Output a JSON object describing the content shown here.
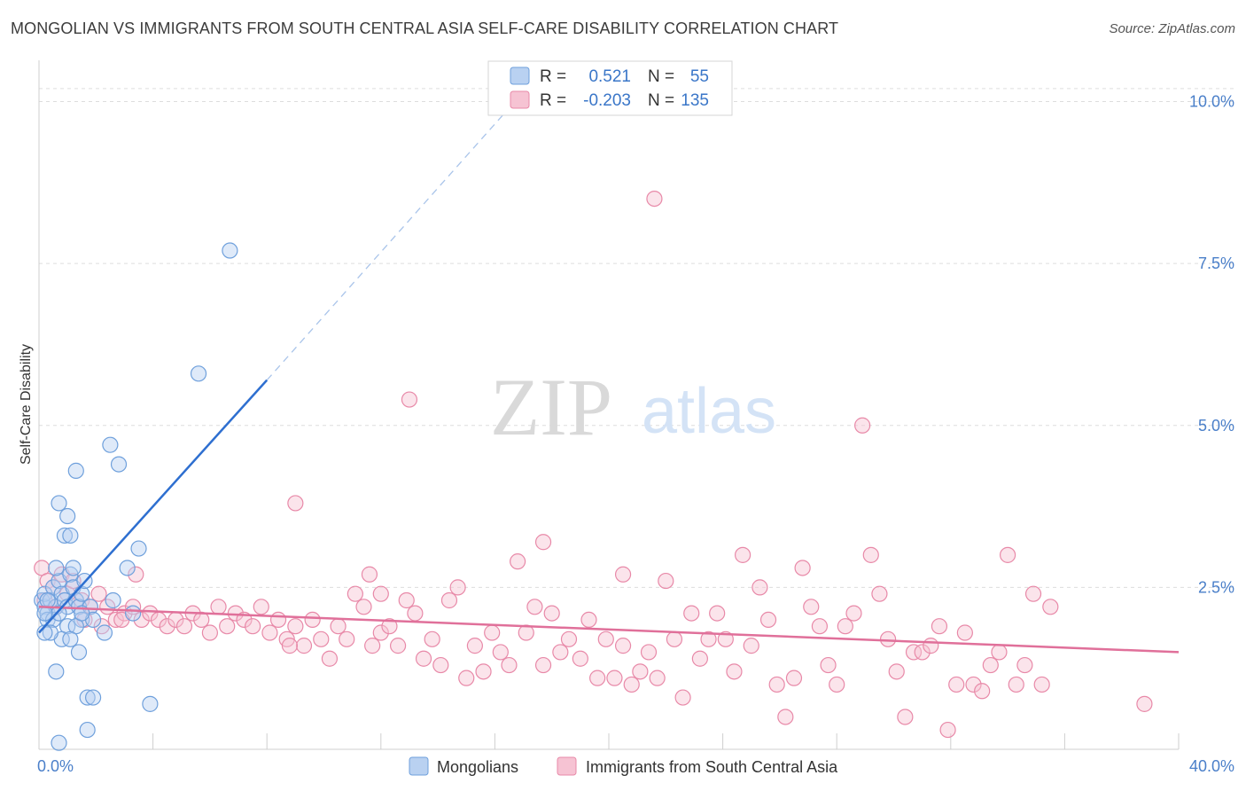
{
  "title": "MONGOLIAN VS IMMIGRANTS FROM SOUTH CENTRAL ASIA SELF-CARE DISABILITY CORRELATION CHART",
  "source": "Source: ZipAtlas.com",
  "watermark": {
    "zip": "ZIP",
    "atlas": "atlas"
  },
  "colors": {
    "blue": "#6fa0dc",
    "blue_fill": "#b9d1f1",
    "blue_line": "#2e6fd0",
    "pink": "#e889a8",
    "pink_fill": "#f6c3d3",
    "pink_line": "#e0709a",
    "grid": "#dddddd",
    "axis_text": "#4a7fc9"
  },
  "legend_stats": {
    "rows": [
      {
        "r_label": "R =",
        "r_value": "0.521",
        "n_label": "N =",
        "n_value": "55"
      },
      {
        "r_label": "R =",
        "r_value": "-0.203",
        "n_label": "N =",
        "n_value": "135"
      }
    ]
  },
  "chart_data": {
    "type": "scatter",
    "title": "MONGOLIAN VS IMMIGRANTS FROM SOUTH CENTRAL ASIA SELF-CARE DISABILITY CORRELATION CHART",
    "xlabel": "",
    "ylabel": "Self-Care Disability",
    "xlim": [
      0,
      40
    ],
    "ylim": [
      0,
      10.5
    ],
    "x_tick_labels": [
      "0.0%",
      "40.0%"
    ],
    "y_ticks": [
      2.5,
      5.0,
      7.5,
      10.0
    ],
    "y_tick_labels": [
      "2.5%",
      "5.0%",
      "7.5%",
      "10.0%"
    ],
    "grid": true,
    "legend_position": "bottom",
    "series": [
      {
        "name": "Mongolians",
        "points": [
          [
            0.1,
            2.3
          ],
          [
            0.2,
            2.2
          ],
          [
            0.3,
            2.1
          ],
          [
            0.2,
            2.4
          ],
          [
            0.4,
            2.3
          ],
          [
            0.5,
            2.5
          ],
          [
            0.6,
            2.2
          ],
          [
            0.3,
            2.0
          ],
          [
            0.7,
            2.6
          ],
          [
            0.8,
            2.4
          ],
          [
            0.5,
            2.0
          ],
          [
            0.9,
            2.3
          ],
          [
            1.0,
            2.2
          ],
          [
            0.6,
            2.8
          ],
          [
            1.1,
            2.7
          ],
          [
            1.2,
            2.5
          ],
          [
            1.3,
            2.3
          ],
          [
            1.4,
            2.2
          ],
          [
            1.5,
            2.4
          ],
          [
            1.6,
            2.6
          ],
          [
            1.0,
            1.9
          ],
          [
            1.2,
            2.8
          ],
          [
            0.8,
            1.7
          ],
          [
            1.5,
            2.0
          ],
          [
            1.3,
            1.9
          ],
          [
            0.4,
            1.8
          ],
          [
            0.7,
            2.1
          ],
          [
            1.1,
            1.7
          ],
          [
            1.8,
            2.2
          ],
          [
            1.9,
            2.0
          ],
          [
            0.9,
            3.3
          ],
          [
            1.0,
            3.6
          ],
          [
            1.1,
            3.3
          ],
          [
            0.7,
            3.8
          ],
          [
            1.3,
            4.3
          ],
          [
            2.5,
            4.7
          ],
          [
            2.8,
            4.4
          ],
          [
            3.5,
            3.1
          ],
          [
            3.1,
            2.8
          ],
          [
            3.3,
            2.1
          ],
          [
            2.6,
            2.3
          ],
          [
            2.3,
            1.8
          ],
          [
            1.4,
            1.5
          ],
          [
            0.6,
            1.2
          ],
          [
            1.7,
            0.8
          ],
          [
            1.9,
            0.8
          ],
          [
            3.9,
            0.7
          ],
          [
            1.7,
            0.3
          ],
          [
            0.7,
            0.1
          ],
          [
            1.5,
            2.1
          ],
          [
            5.6,
            5.8
          ],
          [
            6.7,
            7.7
          ],
          [
            0.2,
            2.1
          ],
          [
            0.3,
            2.3
          ],
          [
            0.2,
            1.8
          ]
        ]
      },
      {
        "name": "Immigrants from South Central Asia",
        "points": [
          [
            0.1,
            2.8
          ],
          [
            0.3,
            2.6
          ],
          [
            0.5,
            2.5
          ],
          [
            0.8,
            2.7
          ],
          [
            1.0,
            2.4
          ],
          [
            1.2,
            2.6
          ],
          [
            1.5,
            2.3
          ],
          [
            1.8,
            2.2
          ],
          [
            2.1,
            2.4
          ],
          [
            2.4,
            2.2
          ],
          [
            2.7,
            2.0
          ],
          [
            3.0,
            2.1
          ],
          [
            3.3,
            2.2
          ],
          [
            3.6,
            2.0
          ],
          [
            3.9,
            2.1
          ],
          [
            4.2,
            2.0
          ],
          [
            4.5,
            1.9
          ],
          [
            4.8,
            2.0
          ],
          [
            5.1,
            1.9
          ],
          [
            5.4,
            2.1
          ],
          [
            5.7,
            2.0
          ],
          [
            6.0,
            1.8
          ],
          [
            6.3,
            2.2
          ],
          [
            6.6,
            1.9
          ],
          [
            6.9,
            2.1
          ],
          [
            7.2,
            2.0
          ],
          [
            7.5,
            1.9
          ],
          [
            7.8,
            2.2
          ],
          [
            8.1,
            1.8
          ],
          [
            8.4,
            2.0
          ],
          [
            8.7,
            1.7
          ],
          [
            9.0,
            1.9
          ],
          [
            9.3,
            1.6
          ],
          [
            9.6,
            2.0
          ],
          [
            9.9,
            1.7
          ],
          [
            10.2,
            1.4
          ],
          [
            10.5,
            1.9
          ],
          [
            10.8,
            1.7
          ],
          [
            11.1,
            2.4
          ],
          [
            11.4,
            2.2
          ],
          [
            11.7,
            1.6
          ],
          [
            12.0,
            1.8
          ],
          [
            12.3,
            1.9
          ],
          [
            12.6,
            1.6
          ],
          [
            12.9,
            2.3
          ],
          [
            13.2,
            2.1
          ],
          [
            13.5,
            1.4
          ],
          [
            13.8,
            1.7
          ],
          [
            14.1,
            1.3
          ],
          [
            14.4,
            2.3
          ],
          [
            14.7,
            2.5
          ],
          [
            15.0,
            1.1
          ],
          [
            15.3,
            1.6
          ],
          [
            15.6,
            1.2
          ],
          [
            15.9,
            1.8
          ],
          [
            16.2,
            1.5
          ],
          [
            16.5,
            1.3
          ],
          [
            16.8,
            2.9
          ],
          [
            17.1,
            1.8
          ],
          [
            17.4,
            2.2
          ],
          [
            17.7,
            1.3
          ],
          [
            18.0,
            2.1
          ],
          [
            18.3,
            1.5
          ],
          [
            18.6,
            1.7
          ],
          [
            19.0,
            1.4
          ],
          [
            19.3,
            2.0
          ],
          [
            19.6,
            1.1
          ],
          [
            19.9,
            1.7
          ],
          [
            20.2,
            1.1
          ],
          [
            20.5,
            1.6
          ],
          [
            20.8,
            1.0
          ],
          [
            21.1,
            1.2
          ],
          [
            21.4,
            1.5
          ],
          [
            21.7,
            1.1
          ],
          [
            22.0,
            2.6
          ],
          [
            22.3,
            1.7
          ],
          [
            22.6,
            0.8
          ],
          [
            22.9,
            2.1
          ],
          [
            23.2,
            1.4
          ],
          [
            23.5,
            1.7
          ],
          [
            23.8,
            2.1
          ],
          [
            24.1,
            1.7
          ],
          [
            24.4,
            1.2
          ],
          [
            24.7,
            3.0
          ],
          [
            25.0,
            1.6
          ],
          [
            25.3,
            2.5
          ],
          [
            25.6,
            2.0
          ],
          [
            25.9,
            1.0
          ],
          [
            26.2,
            0.5
          ],
          [
            26.5,
            1.1
          ],
          [
            26.8,
            2.8
          ],
          [
            27.1,
            2.2
          ],
          [
            27.4,
            1.9
          ],
          [
            27.7,
            1.3
          ],
          [
            28.0,
            1.0
          ],
          [
            28.3,
            1.9
          ],
          [
            28.6,
            2.1
          ],
          [
            28.9,
            5.0
          ],
          [
            29.2,
            3.0
          ],
          [
            29.5,
            2.4
          ],
          [
            29.8,
            1.7
          ],
          [
            30.1,
            1.2
          ],
          [
            30.4,
            0.5
          ],
          [
            30.7,
            1.5
          ],
          [
            31.0,
            1.5
          ],
          [
            31.3,
            1.6
          ],
          [
            31.6,
            1.9
          ],
          [
            31.9,
            0.3
          ],
          [
            32.2,
            1.0
          ],
          [
            32.5,
            1.8
          ],
          [
            32.8,
            1.0
          ],
          [
            33.1,
            0.9
          ],
          [
            33.4,
            1.3
          ],
          [
            33.7,
            1.5
          ],
          [
            34.0,
            3.0
          ],
          [
            34.3,
            1.0
          ],
          [
            34.6,
            1.3
          ],
          [
            34.9,
            2.4
          ],
          [
            35.2,
            1.0
          ],
          [
            35.5,
            2.2
          ],
          [
            38.8,
            0.7
          ],
          [
            1.6,
            2.0
          ],
          [
            2.2,
            1.9
          ],
          [
            3.4,
            2.7
          ],
          [
            9.0,
            3.8
          ],
          [
            13.0,
            5.4
          ],
          [
            12.0,
            2.4
          ],
          [
            17.7,
            3.2
          ],
          [
            20.5,
            2.7
          ],
          [
            21.6,
            8.5
          ],
          [
            8.8,
            1.6
          ],
          [
            11.6,
            2.7
          ],
          [
            0.2,
            2.3
          ],
          [
            0.6,
            2.2
          ],
          [
            2.9,
            2.0
          ]
        ]
      }
    ],
    "trendlines": [
      {
        "series": "Mongolians",
        "x": [
          0,
          8.0
        ],
        "y": [
          1.8,
          5.7
        ],
        "extension": {
          "x": [
            8.0,
            16.5
          ],
          "y": [
            5.7,
            9.9
          ],
          "style": "dashed"
        }
      },
      {
        "series": "Immigrants from South Central Asia",
        "x": [
          0,
          40
        ],
        "y": [
          2.2,
          1.5
        ]
      }
    ]
  }
}
